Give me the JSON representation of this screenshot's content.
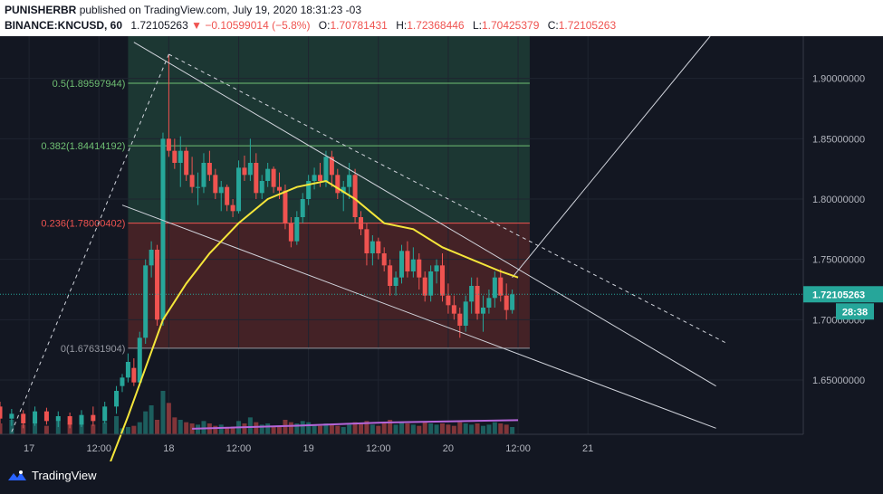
{
  "header": {
    "author": "PUNISHERBR",
    "published_text": "published on TradingView.com, July 19, 2020 18:31:23 -03",
    "symbol": "BINANCE:KNCUSD, 60",
    "last_price": "1.72105263",
    "change": "−0.10599014 (−5.8%)",
    "o_label": "O:",
    "o_value": "1.70781431",
    "h_label": "H:",
    "h_value": "1.72368446",
    "l_label": "L:",
    "l_value": "1.70425379",
    "c_label": "C:",
    "c_value": "1.72105263"
  },
  "footer": {
    "brand": "TradingView"
  },
  "colors": {
    "background": "#131722",
    "up": "#26a69a",
    "down": "#ef5350",
    "ma_short": "#f5e63a",
    "ma_volume": "#b566d9",
    "fib_upper_zone": "#1e3d36",
    "fib_lower_zone": "#4a2327",
    "trendline": "#d1d4dc"
  },
  "chart_data": {
    "type": "candlestick",
    "x_ticks": [
      "17",
      "12:00",
      "18",
      "12:00",
      "19",
      "12:00",
      "20",
      "12:00",
      "21"
    ],
    "y_ticks": [
      "1.90000000",
      "1.85000000",
      "1.80000000",
      "1.75000000",
      "1.70000000",
      "1.65000000"
    ],
    "y_range": [
      1.605,
      1.935
    ],
    "x_range_hours": [
      -21,
      117
    ],
    "price_label": "1.72105263",
    "countdown_label": "28:38",
    "fib_levels": [
      {
        "label": "0.5(1.89597944)",
        "value": 1.89597944
      },
      {
        "label": "0.382(1.84414192)",
        "value": 1.84414192
      },
      {
        "label": "0.236(1.78000402)",
        "value": 1.78000402
      },
      {
        "label": "0(1.67631904)",
        "value": 1.67631904
      }
    ],
    "candles": [
      [
        0,
        1.645,
        1.655,
        1.64,
        1.652
      ],
      [
        1,
        1.652,
        1.672,
        1.648,
        1.665
      ],
      [
        2,
        1.66,
        1.668,
        1.645,
        1.648
      ],
      [
        3,
        1.648,
        1.69,
        1.645,
        1.685
      ],
      [
        4,
        1.685,
        1.75,
        1.68,
        1.745
      ],
      [
        5,
        1.745,
        1.765,
        1.735,
        1.758
      ],
      [
        6,
        1.758,
        1.762,
        1.695,
        1.7
      ],
      [
        7,
        1.7,
        1.855,
        1.695,
        1.85
      ],
      [
        8,
        1.85,
        1.92,
        1.835,
        1.84
      ],
      [
        9,
        1.84,
        1.85,
        1.825,
        1.83
      ],
      [
        10,
        1.83,
        1.852,
        1.81,
        1.84
      ],
      [
        11,
        1.84,
        1.843,
        1.815,
        1.82
      ],
      [
        12,
        1.82,
        1.835,
        1.805,
        1.81
      ],
      [
        13,
        1.81,
        1.822,
        1.795,
        1.81
      ],
      [
        14,
        1.81,
        1.838,
        1.805,
        1.83
      ],
      [
        15,
        1.83,
        1.84,
        1.815,
        1.82
      ],
      [
        16,
        1.82,
        1.825,
        1.8,
        1.805
      ],
      [
        17,
        1.805,
        1.815,
        1.79,
        1.81
      ],
      [
        18,
        1.81,
        1.812,
        1.79,
        1.795
      ],
      [
        19,
        1.795,
        1.8,
        1.785,
        1.79
      ],
      [
        20,
        1.79,
        1.832,
        1.788,
        1.826
      ],
      [
        21,
        1.826,
        1.836,
        1.815,
        1.82
      ],
      [
        22,
        1.82,
        1.85,
        1.815,
        1.83
      ],
      [
        23,
        1.83,
        1.838,
        1.8,
        1.805
      ],
      [
        24,
        1.805,
        1.82,
        1.8,
        1.815
      ],
      [
        25,
        1.815,
        1.83,
        1.81,
        1.825
      ],
      [
        26,
        1.825,
        1.827,
        1.805,
        1.81
      ],
      [
        27,
        1.81,
        1.822,
        1.8,
        1.807
      ],
      [
        28,
        1.807,
        1.812,
        1.775,
        1.78
      ],
      [
        29,
        1.78,
        1.785,
        1.76,
        1.765
      ],
      [
        30,
        1.765,
        1.79,
        1.762,
        1.785
      ],
      [
        31,
        1.785,
        1.805,
        1.78,
        1.8
      ],
      [
        32,
        1.8,
        1.82,
        1.795,
        1.815
      ],
      [
        33,
        1.815,
        1.826,
        1.808,
        1.82
      ],
      [
        34,
        1.82,
        1.83,
        1.81,
        1.815
      ],
      [
        35,
        1.815,
        1.84,
        1.81,
        1.835
      ],
      [
        36,
        1.835,
        1.84,
        1.81,
        1.82
      ],
      [
        37,
        1.82,
        1.825,
        1.8,
        1.805
      ],
      [
        38,
        1.805,
        1.815,
        1.79,
        1.81
      ],
      [
        39,
        1.81,
        1.83,
        1.8,
        1.82
      ],
      [
        40,
        1.82,
        1.825,
        1.78,
        1.785
      ],
      [
        41,
        1.785,
        1.79,
        1.77,
        1.775
      ],
      [
        42,
        1.775,
        1.78,
        1.745,
        1.755
      ],
      [
        43,
        1.755,
        1.77,
        1.745,
        1.765
      ],
      [
        44,
        1.765,
        1.768,
        1.75,
        1.755
      ],
      [
        45,
        1.755,
        1.76,
        1.74,
        1.745
      ],
      [
        46,
        1.745,
        1.75,
        1.72,
        1.728
      ],
      [
        47,
        1.728,
        1.74,
        1.72,
        1.735
      ],
      [
        48,
        1.735,
        1.762,
        1.73,
        1.757
      ],
      [
        49,
        1.757,
        1.765,
        1.735,
        1.74
      ],
      [
        50,
        1.74,
        1.76,
        1.735,
        1.75
      ],
      [
        51,
        1.75,
        1.755,
        1.725,
        1.735
      ],
      [
        52,
        1.735,
        1.74,
        1.715,
        1.72
      ],
      [
        53,
        1.72,
        1.745,
        1.715,
        1.74
      ],
      [
        54,
        1.74,
        1.75,
        1.73,
        1.745
      ],
      [
        55,
        1.745,
        1.755,
        1.715,
        1.72
      ],
      [
        56,
        1.72,
        1.73,
        1.705,
        1.712
      ],
      [
        57,
        1.712,
        1.72,
        1.7,
        1.705
      ],
      [
        58,
        1.705,
        1.71,
        1.685,
        1.695
      ],
      [
        59,
        1.695,
        1.72,
        1.69,
        1.715
      ],
      [
        60,
        1.715,
        1.735,
        1.705,
        1.728
      ],
      [
        61,
        1.728,
        1.735,
        1.7,
        1.705
      ],
      [
        62,
        1.705,
        1.72,
        1.69,
        1.71
      ],
      [
        63,
        1.71,
        1.725,
        1.705,
        1.718
      ],
      [
        64,
        1.718,
        1.74,
        1.71,
        1.735
      ],
      [
        65,
        1.735,
        1.742,
        1.715,
        1.72
      ],
      [
        66,
        1.72,
        1.73,
        1.7,
        1.708
      ],
      [
        67,
        1.708,
        1.725,
        1.705,
        1.721
      ]
    ],
    "history_candles": [
      [
        -21,
        1.628,
        1.632,
        1.614,
        1.618
      ],
      [
        -19,
        1.618,
        1.626,
        1.612,
        1.622
      ],
      [
        -17,
        1.622,
        1.625,
        1.61,
        1.614
      ],
      [
        -15,
        1.614,
        1.628,
        1.612,
        1.624
      ],
      [
        -13,
        1.624,
        1.627,
        1.613,
        1.616
      ],
      [
        -11,
        1.616,
        1.624,
        1.611,
        1.62
      ],
      [
        -9,
        1.62,
        1.623,
        1.61,
        1.613
      ],
      [
        -7,
        1.613,
        1.625,
        1.611,
        1.621
      ],
      [
        -5,
        1.621,
        1.628,
        1.612,
        1.616
      ],
      [
        -3,
        1.616,
        1.632,
        1.614,
        1.628
      ],
      [
        -1,
        1.628,
        1.645,
        1.622,
        1.641
      ]
    ],
    "volume": [
      0.5,
      0.6,
      0.7,
      1.0,
      1.9,
      2.4,
      1.2,
      3.6,
      2.6,
      1.4,
      1.2,
      1.0,
      0.9,
      0.8,
      1.1,
      0.9,
      0.7,
      0.8,
      0.6,
      0.6,
      1.1,
      0.9,
      1.4,
      1.0,
      0.8,
      0.9,
      0.7,
      0.6,
      1.2,
      1.0,
      0.9,
      1.1,
      1.0,
      0.8,
      0.7,
      0.9,
      0.8,
      0.7,
      0.6,
      0.8,
      1.0,
      0.9,
      1.1,
      0.8,
      0.7,
      0.9,
      1.2,
      0.8,
      1.0,
      0.9,
      0.8,
      0.7,
      1.0,
      0.9,
      0.8,
      0.9,
      0.8,
      0.7,
      1.0,
      0.9,
      0.8,
      0.9,
      0.7,
      0.8,
      1.0,
      0.9,
      0.8,
      0.6
    ],
    "history_volume": [
      0.9,
      1.2,
      0.8,
      1.4,
      0.7,
      1.1,
      0.9,
      1.3,
      0.8,
      1.0,
      1.5
    ],
    "volume_ma": [
      [
        12,
        0.35
      ],
      [
        30,
        0.55
      ],
      [
        45,
        0.75
      ],
      [
        60,
        0.85
      ],
      [
        68,
        0.9
      ]
    ]
  }
}
